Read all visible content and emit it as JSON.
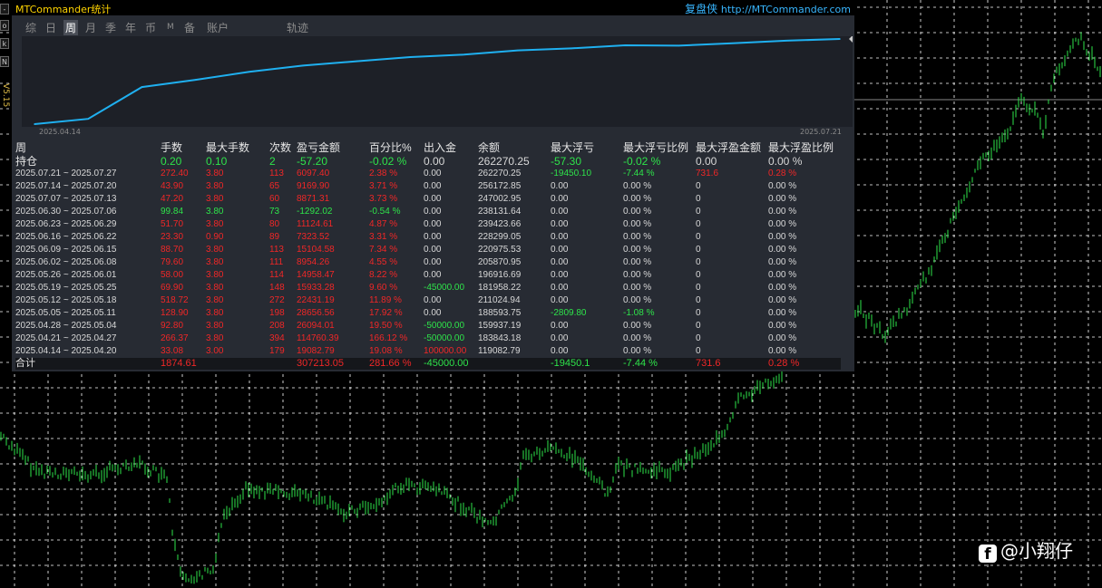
{
  "colors": {
    "profit": "#f02727",
    "loss": "#2ee34a",
    "neutral": "#d8d8d8",
    "equity_line": "#1fb0f0",
    "candles": "#2ee34a"
  },
  "app": {
    "title": "MTCommander统计",
    "brand": "复盘侠",
    "brand_url": "http://MTCommander.com"
  },
  "left_toolbar": {
    "buttons": [
      "-",
      "o",
      "k",
      "N"
    ],
    "version": "V5.15"
  },
  "tabs": [
    "综",
    "日",
    "周",
    "月",
    "季",
    "年",
    "币",
    "M",
    "备",
    "账户",
    "轨迹"
  ],
  "active_tab": "周",
  "equity_chart": {
    "start_label": "2025.04.14",
    "end_label": "2025.07.21"
  },
  "chart_data": {
    "type": "line",
    "x": [
      "2025.04.14",
      "2025.04.21",
      "2025.04.28",
      "2025.05.05",
      "2025.05.12",
      "2025.05.19",
      "2025.05.26",
      "2025.06.02",
      "2025.06.09",
      "2025.06.16",
      "2025.06.23",
      "2025.06.30",
      "2025.07.07",
      "2025.07.14",
      "2025.07.21"
    ],
    "y": [
      119082.79,
      183843.18,
      159937.19,
      188593.75,
      211024.94,
      181958.22,
      196916.69,
      205870.95,
      220975.53,
      228299.05,
      239423.66,
      238131.64,
      247002.95,
      256172.85,
      262270.25
    ]
  },
  "table": {
    "headers": [
      "周",
      "手数",
      "最大手数",
      "次数",
      "盈亏金额",
      "百分比%",
      "出入金",
      "余额",
      "最大浮亏",
      "最大浮亏比例",
      "最大浮盈金额",
      "最大浮盈比例"
    ],
    "holding": [
      "持仓",
      "0.20",
      "0.10",
      "2",
      "-57.20",
      "-0.02 %",
      "0.00",
      "262270.25",
      "-57.30",
      "-0.02 %",
      "0.00",
      "0.00 %"
    ],
    "rows": [
      [
        "2025.07.21 ~ 2025.07.27",
        "272.40",
        "3.80",
        "113",
        "6097.40",
        "2.38 %",
        "0.00",
        "262270.25",
        "-19450.10",
        "-7.44 %",
        "731.6",
        "0.28 %"
      ],
      [
        "2025.07.14 ~ 2025.07.20",
        "43.90",
        "3.80",
        "65",
        "9169.90",
        "3.71 %",
        "0.00",
        "256172.85",
        "0.00",
        "0.00 %",
        "0",
        "0.00 %"
      ],
      [
        "2025.07.07 ~ 2025.07.13",
        "47.20",
        "3.80",
        "60",
        "8871.31",
        "3.73 %",
        "0.00",
        "247002.95",
        "0.00",
        "0.00 %",
        "0",
        "0.00 %"
      ],
      [
        "2025.06.30 ~ 2025.07.06",
        "99.84",
        "3.80",
        "73",
        "-1292.02",
        "-0.54 %",
        "0.00",
        "238131.64",
        "0.00",
        "0.00 %",
        "0",
        "0.00 %"
      ],
      [
        "2025.06.23 ~ 2025.06.29",
        "51.70",
        "3.80",
        "80",
        "11124.61",
        "4.87 %",
        "0.00",
        "239423.66",
        "0.00",
        "0.00 %",
        "0",
        "0.00 %"
      ],
      [
        "2025.06.16 ~ 2025.06.22",
        "23.30",
        "0.90",
        "89",
        "7323.52",
        "3.31 %",
        "0.00",
        "228299.05",
        "0.00",
        "0.00 %",
        "0",
        "0.00 %"
      ],
      [
        "2025.06.09 ~ 2025.06.15",
        "88.70",
        "3.80",
        "113",
        "15104.58",
        "7.34 %",
        "0.00",
        "220975.53",
        "0.00",
        "0.00 %",
        "0",
        "0.00 %"
      ],
      [
        "2025.06.02 ~ 2025.06.08",
        "79.60",
        "3.80",
        "111",
        "8954.26",
        "4.55 %",
        "0.00",
        "205870.95",
        "0.00",
        "0.00 %",
        "0",
        "0.00 %"
      ],
      [
        "2025.05.26 ~ 2025.06.01",
        "58.00",
        "3.80",
        "114",
        "14958.47",
        "8.22 %",
        "0.00",
        "196916.69",
        "0.00",
        "0.00 %",
        "0",
        "0.00 %"
      ],
      [
        "2025.05.19 ~ 2025.05.25",
        "69.90",
        "3.80",
        "148",
        "15933.28",
        "9.60 %",
        "-45000.00",
        "181958.22",
        "0.00",
        "0.00 %",
        "0",
        "0.00 %"
      ],
      [
        "2025.05.12 ~ 2025.05.18",
        "518.72",
        "3.80",
        "272",
        "22431.19",
        "11.89 %",
        "0.00",
        "211024.94",
        "0.00",
        "0.00 %",
        "0",
        "0.00 %"
      ],
      [
        "2025.05.05 ~ 2025.05.11",
        "128.90",
        "3.80",
        "198",
        "28656.56",
        "17.92 %",
        "0.00",
        "188593.75",
        "-2809.80",
        "-1.08 %",
        "0",
        "0.00 %"
      ],
      [
        "2025.04.28 ~ 2025.05.04",
        "92.80",
        "3.80",
        "208",
        "26094.01",
        "19.50 %",
        "-50000.00",
        "159937.19",
        "0.00",
        "0.00 %",
        "0",
        "0.00 %"
      ],
      [
        "2025.04.21 ~ 2025.04.27",
        "266.37",
        "3.80",
        "394",
        "114760.39",
        "166.12 %",
        "-50000.00",
        "183843.18",
        "0.00",
        "0.00 %",
        "0",
        "0.00 %"
      ],
      [
        "2025.04.14 ~ 2025.04.20",
        "33.08",
        "3.00",
        "179",
        "19082.79",
        "19.08 %",
        "100000.00",
        "119082.79",
        "0.00",
        "0.00 %",
        "0",
        "0.00 %"
      ]
    ],
    "total": [
      "合计",
      "1874.61",
      "",
      "",
      "307213.05",
      "281.66 %",
      "-45000.00",
      "",
      "-19450.1",
      "-7.44 %",
      "731.6",
      "0.28 %"
    ]
  },
  "watermark": {
    "icon": "facebook-icon",
    "text": "@小翔仔"
  }
}
